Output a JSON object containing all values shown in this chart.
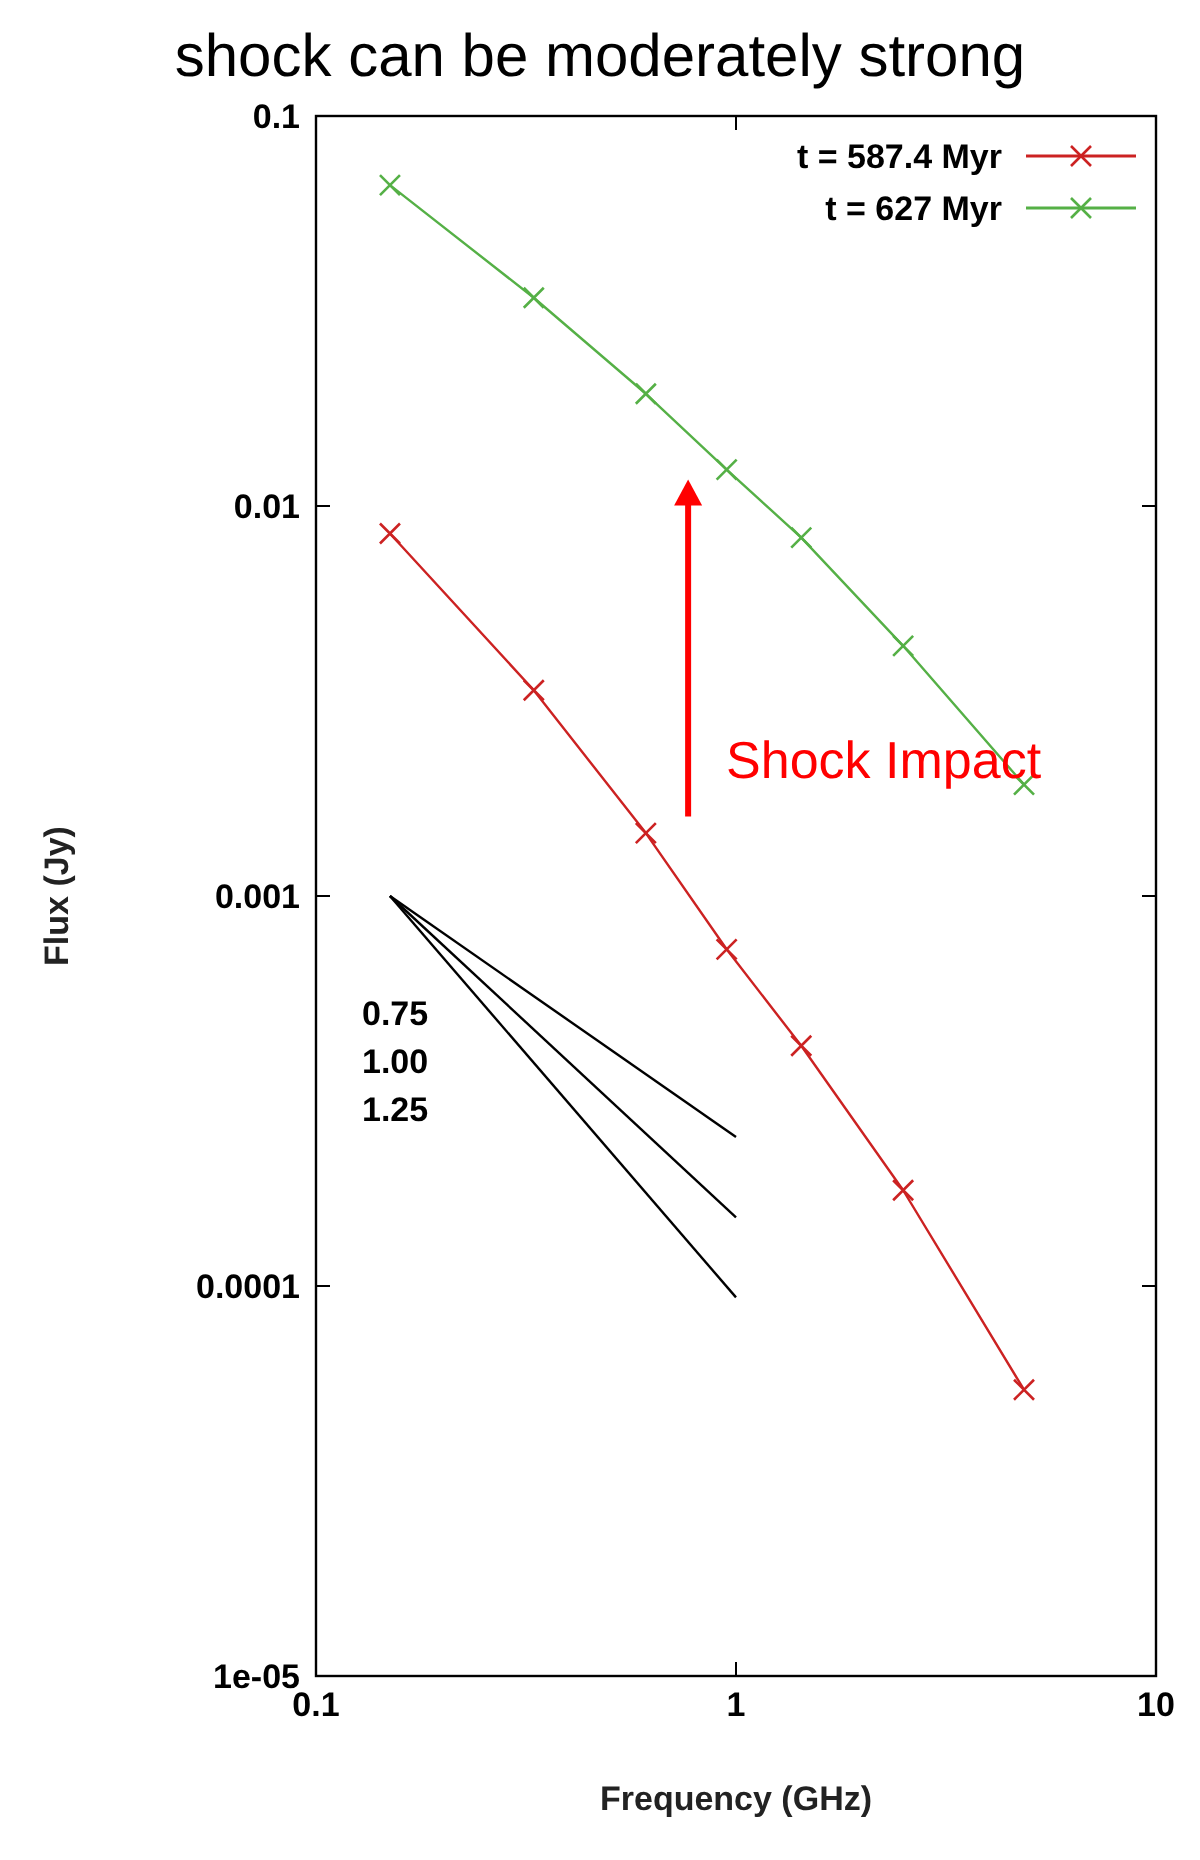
{
  "chart_data": {
    "type": "line",
    "title": "shock can be moderately strong",
    "xlabel": "Frequency (GHz)",
    "ylabel": "Flux (Jy)",
    "log": "xy",
    "xlim": [
      0.1,
      10
    ],
    "xticks": [
      0.1,
      1,
      10
    ],
    "ylim": [
      1e-05,
      0.1
    ],
    "yticks": [
      {
        "value": 1e-05,
        "label": "1e-05"
      },
      0.0001,
      0.001,
      0.01,
      0.1
    ],
    "legend": "top right",
    "series": [
      {
        "name": "t = 587.4 Myr",
        "color": "#cc2222",
        "marker": "cross",
        "x": [
          0.15,
          0.33,
          0.61,
          0.95,
          1.43,
          2.5,
          4.85
        ],
        "values": [
          0.0085,
          0.00337,
          0.00145,
          0.00073,
          0.000413,
          0.000176,
          5.42e-05
        ]
      },
      {
        "name": "t = 627 Myr",
        "color": "#55b046",
        "marker": "cross",
        "x": [
          0.15,
          0.33,
          0.61,
          0.95,
          1.43,
          2.5,
          4.85
        ],
        "values": [
          0.0665,
          0.0342,
          0.0194,
          0.0124,
          0.0083,
          0.00438,
          0.00193
        ]
      },
      {
        "color": "#000000",
        "marker": "none",
        "x": [
          0.15,
          1
        ],
        "values": [
          0.001,
          0.000241
        ]
      },
      {
        "color": "#000000",
        "marker": "none",
        "x": [
          0.15,
          1
        ],
        "values": [
          0.001,
          0.00015
        ]
      },
      {
        "color": "#000000",
        "marker": "none",
        "x": [
          0.15,
          1
        ],
        "values": [
          0.001,
          9.35e-05
        ]
      }
    ],
    "annotations": [
      "0.75",
      "1.00",
      "1.25",
      "Shock Impact"
    ]
  }
}
